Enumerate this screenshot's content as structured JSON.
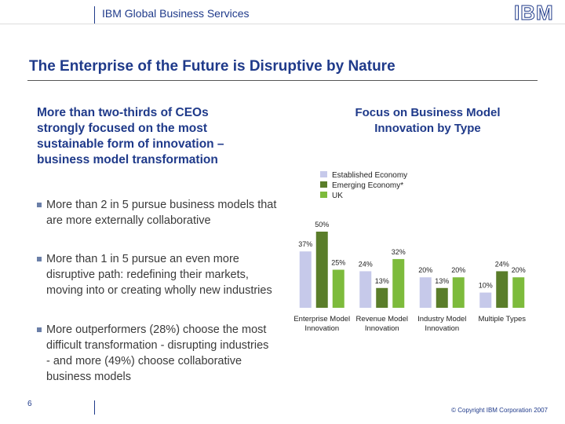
{
  "header": {
    "unit": "IBM Global Business Services",
    "logo": "IBM"
  },
  "title": "The Enterprise of the Future is Disruptive by Nature",
  "left": {
    "heading": "More than two-thirds of CEOs strongly focused on the most sustainable form of innovation – business model transformation",
    "bullets": [
      "More than 2 in 5 pursue business models that are more externally collaborative",
      "More than 1 in 5 pursue an even more disruptive path: redefining their markets, moving into or creating wholly new industries",
      "More outperformers (28%) choose the most difficult transformation - disrupting industries - and more (49%) choose collaborative business models"
    ]
  },
  "chart_data": {
    "type": "bar",
    "title": "Focus on Business Model Innovation by Type",
    "categories": [
      "Enterprise Model Innovation",
      "Revenue Model Innovation",
      "Industry Model Innovation",
      "Multiple Types"
    ],
    "series": [
      {
        "name": "Established Economy",
        "color": "#c6c9ea",
        "values": [
          37,
          24,
          20,
          10
        ],
        "value_labels": [
          "37%",
          "24%",
          "20%",
          "10%"
        ]
      },
      {
        "name": "Emerging Economy*",
        "color": "#5a7d2a",
        "values": [
          50,
          13,
          13,
          24
        ],
        "value_labels": [
          "50%",
          "13%",
          "13%",
          "24%"
        ]
      },
      {
        "name": "UK",
        "color": "#7dbb3c",
        "values": [
          25,
          32,
          20,
          20
        ],
        "value_labels": [
          "25%",
          "32%",
          "20%",
          "20%"
        ]
      }
    ]
  },
  "footer": {
    "page": "6",
    "copyright": "© Copyright IBM Corporation 2007"
  }
}
